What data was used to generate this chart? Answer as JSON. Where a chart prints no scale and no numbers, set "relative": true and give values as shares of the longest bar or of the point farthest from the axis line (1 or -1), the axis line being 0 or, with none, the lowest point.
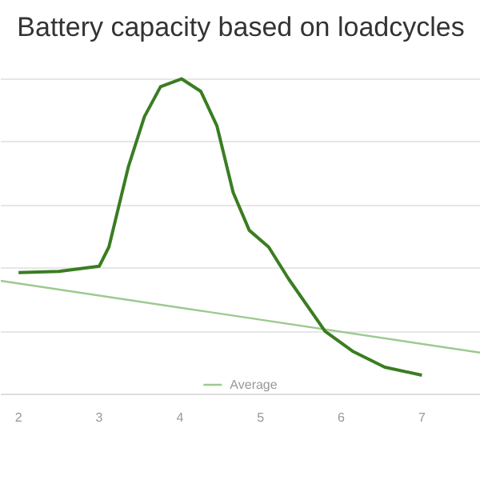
{
  "chart_data": {
    "type": "line",
    "title": "Battery capacity based on loadcycles",
    "relative": true,
    "x": [
      2,
      2.5,
      3,
      3.12,
      3.36,
      3.56,
      3.76,
      4.02,
      4.26,
      4.46,
      4.66,
      4.86,
      5.1,
      5.35,
      5.8,
      6.14,
      6.54,
      7
    ],
    "xlim": [
      1.78,
      7.73
    ],
    "xticks": [
      2,
      3,
      4,
      5,
      6,
      7
    ],
    "grid": "y",
    "legend": "bottom",
    "marker": "none",
    "line_style": "solid",
    "series": [
      {
        "name": "Average",
        "color": "#9cc98f",
        "x": [
          1.78,
          7.73
        ],
        "values": [
          0.36,
          0.132
        ]
      },
      {
        "color": "#3a7d22",
        "values": [
          0.386,
          0.39,
          0.406,
          0.467,
          0.72,
          0.88,
          0.975,
          1,
          0.96,
          0.85,
          0.64,
          0.52,
          0.467,
          0.365,
          0.2,
          0.137,
          0.086,
          0.061
        ]
      }
    ]
  }
}
